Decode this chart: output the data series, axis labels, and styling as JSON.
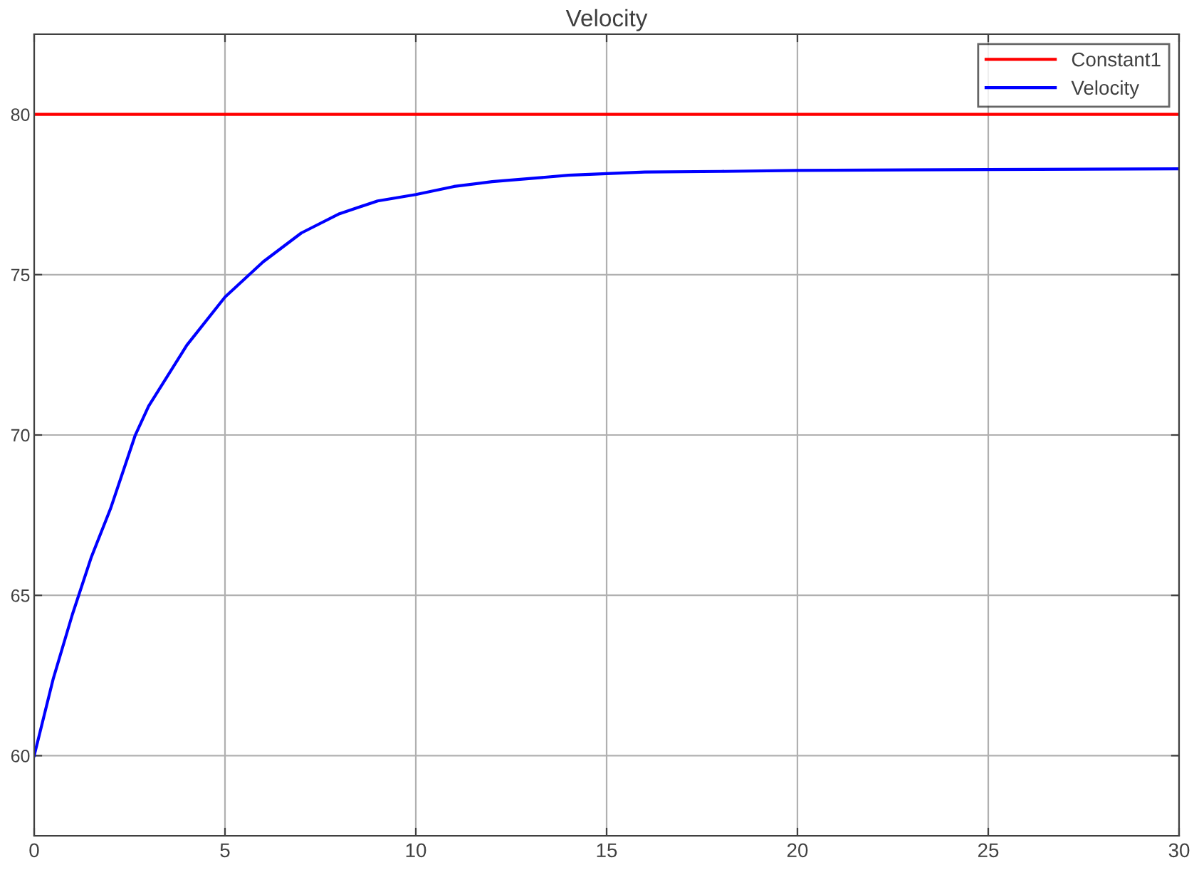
{
  "chart_data": {
    "type": "line",
    "title": "Velocity",
    "xlim": [
      0,
      30
    ],
    "xticks": [
      0,
      5,
      10,
      15,
      20,
      25,
      30
    ],
    "ylim": [
      57.5,
      82.5
    ],
    "yticks": [
      60,
      65,
      70,
      75,
      80
    ],
    "grid": true,
    "legend": "top right",
    "series": [
      {
        "name": "Constant1",
        "type": "step",
        "color": "#ff0000",
        "x": [
          0,
          30
        ],
        "values": [
          80,
          80
        ]
      },
      {
        "name": "Velocity",
        "color": "#0000ff",
        "x": [
          0,
          0.5,
          1,
          1.5,
          2,
          2.65,
          3,
          4,
          5,
          6,
          7,
          8,
          9,
          10,
          11,
          12,
          14,
          16,
          18,
          20,
          25,
          30
        ],
        "values": [
          60,
          62.4,
          64.4,
          66.2,
          67.7,
          70,
          70.9,
          72.8,
          74.3,
          75.4,
          76.3,
          76.9,
          77.3,
          77.5,
          77.75,
          77.9,
          78.1,
          78.2,
          78.22,
          78.25,
          78.28,
          78.3
        ]
      }
    ]
  }
}
